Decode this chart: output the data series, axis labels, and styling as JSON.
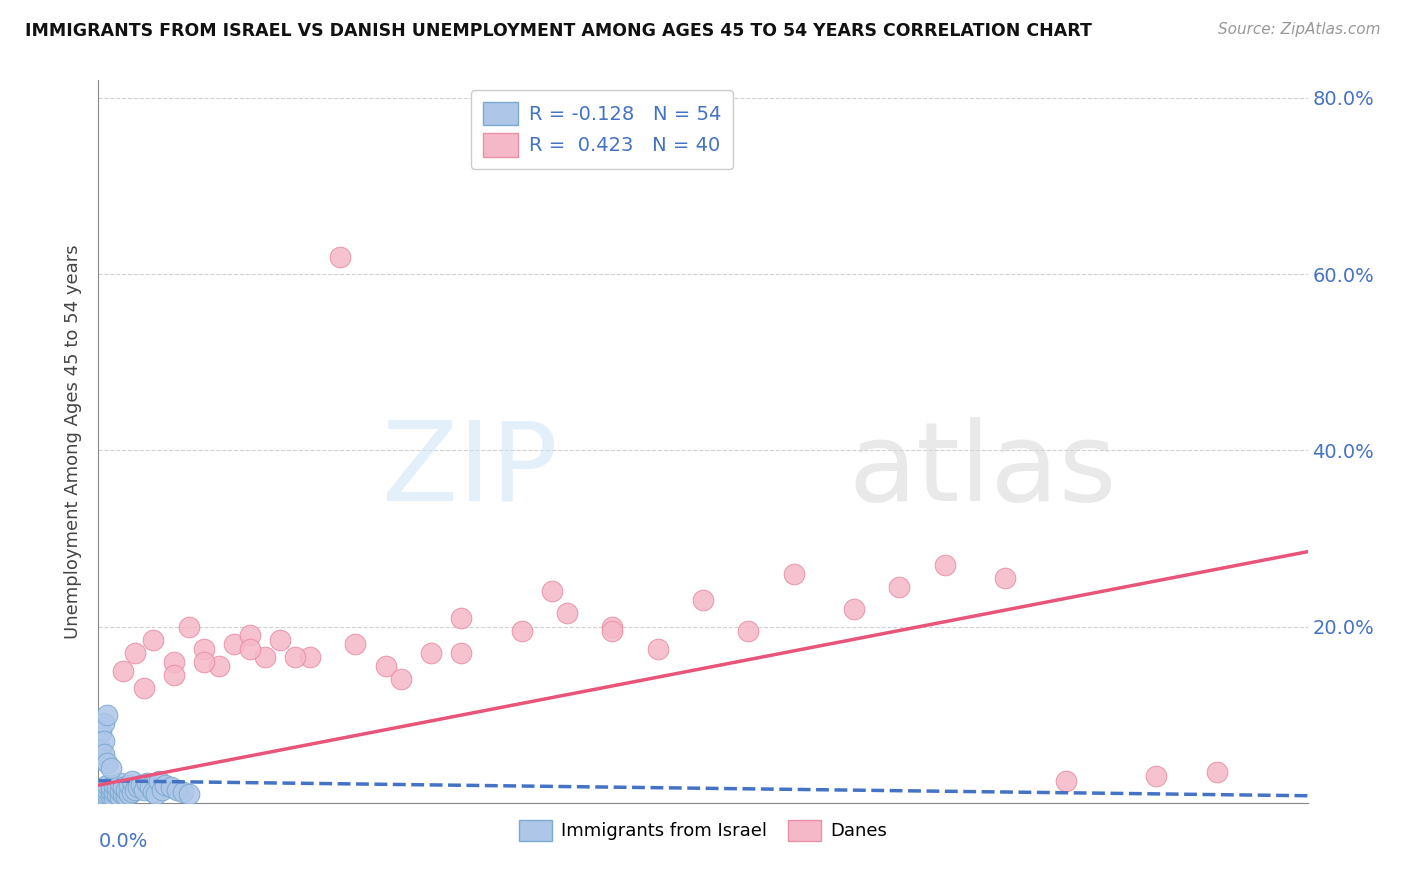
{
  "title": "IMMIGRANTS FROM ISRAEL VS DANISH UNEMPLOYMENT AMONG AGES 45 TO 54 YEARS CORRELATION CHART",
  "source": "Source: ZipAtlas.com",
  "ylabel": "Unemployment Among Ages 45 to 54 years",
  "xlim": [
    0.0,
    0.4
  ],
  "ylim": [
    0.0,
    0.82
  ],
  "legend_r1": "R = -0.128   N = 54",
  "legend_r2": "R =  0.423   N = 40",
  "blue_fill": "#aec6e8",
  "pink_fill": "#f5b8c8",
  "blue_edge": "#7aaad0",
  "pink_edge": "#e890a8",
  "blue_line_color": "#4472c4",
  "pink_line_color": "#e8547a",
  "grid_color": "#cccccc",
  "ytick_vals": [
    0.0,
    0.2,
    0.4,
    0.6,
    0.8
  ],
  "ytick_labels": [
    "",
    "20.0%",
    "40.0%",
    "60.0%",
    "80.0%"
  ],
  "blue_x": [
    0.001,
    0.001,
    0.001,
    0.002,
    0.002,
    0.002,
    0.002,
    0.003,
    0.003,
    0.003,
    0.003,
    0.004,
    0.004,
    0.004,
    0.005,
    0.005,
    0.005,
    0.006,
    0.006,
    0.007,
    0.007,
    0.007,
    0.008,
    0.008,
    0.009,
    0.009,
    0.01,
    0.01,
    0.011,
    0.011,
    0.012,
    0.013,
    0.014,
    0.015,
    0.016,
    0.017,
    0.018,
    0.019,
    0.02,
    0.021,
    0.022,
    0.024,
    0.026,
    0.028,
    0.03,
    0.001,
    0.002,
    0.003,
    0.001,
    0.002,
    0.001,
    0.002,
    0.003,
    0.004
  ],
  "blue_y": [
    0.005,
    0.01,
    0.015,
    0.003,
    0.007,
    0.012,
    0.018,
    0.005,
    0.01,
    0.015,
    0.02,
    0.008,
    0.013,
    0.018,
    0.006,
    0.012,
    0.02,
    0.01,
    0.018,
    0.007,
    0.013,
    0.022,
    0.01,
    0.018,
    0.008,
    0.015,
    0.01,
    0.02,
    0.012,
    0.025,
    0.015,
    0.018,
    0.02,
    0.015,
    0.022,
    0.018,
    0.012,
    0.01,
    0.025,
    0.015,
    0.02,
    0.018,
    0.015,
    0.012,
    0.01,
    0.08,
    0.09,
    0.1,
    0.06,
    0.07,
    0.05,
    0.055,
    0.045,
    0.04
  ],
  "pink_x": [
    0.008,
    0.012,
    0.018,
    0.025,
    0.03,
    0.035,
    0.04,
    0.045,
    0.05,
    0.055,
    0.06,
    0.07,
    0.08,
    0.095,
    0.11,
    0.12,
    0.14,
    0.155,
    0.17,
    0.185,
    0.2,
    0.215,
    0.23,
    0.25,
    0.265,
    0.28,
    0.3,
    0.32,
    0.35,
    0.37,
    0.015,
    0.025,
    0.035,
    0.05,
    0.065,
    0.085,
    0.1,
    0.12,
    0.15,
    0.17
  ],
  "pink_y": [
    0.15,
    0.17,
    0.185,
    0.16,
    0.2,
    0.175,
    0.155,
    0.18,
    0.19,
    0.165,
    0.185,
    0.165,
    0.62,
    0.155,
    0.17,
    0.21,
    0.195,
    0.215,
    0.2,
    0.175,
    0.23,
    0.195,
    0.26,
    0.22,
    0.245,
    0.27,
    0.255,
    0.025,
    0.03,
    0.035,
    0.13,
    0.145,
    0.16,
    0.175,
    0.165,
    0.18,
    0.14,
    0.17,
    0.24,
    0.195
  ],
  "blue_trend_x": [
    0.0,
    0.4
  ],
  "blue_trend_y": [
    0.025,
    0.008
  ],
  "pink_trend_x": [
    0.0,
    0.4
  ],
  "pink_trend_y": [
    0.02,
    0.285
  ]
}
